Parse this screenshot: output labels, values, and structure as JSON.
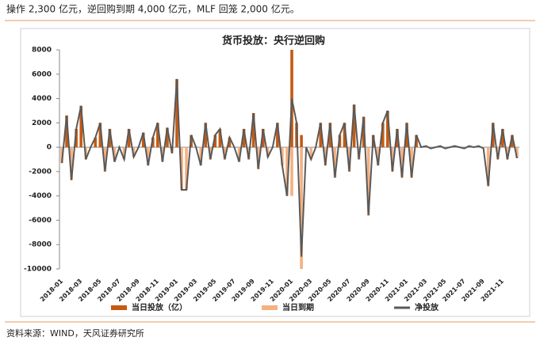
{
  "header": "操作 2,300 亿元，逆回购到期 4,000 亿元，MLF 回笼 2,000 亿元。",
  "source": "资料来源：WIND，天风证券研究所",
  "chart_data": {
    "type": "bar",
    "title": "货币投放：央行逆回购",
    "categories": [
      "2018-01",
      null,
      null,
      null,
      "2018-03",
      null,
      null,
      null,
      "2018-05",
      null,
      null,
      null,
      "2018-07",
      null,
      null,
      null,
      "2018-09",
      null,
      null,
      null,
      "2018-11",
      null,
      null,
      null,
      "2019-01",
      null,
      null,
      null,
      "2019-03",
      null,
      null,
      null,
      "2019-05",
      null,
      null,
      null,
      "2019-07",
      null,
      null,
      null,
      "2019-09",
      null,
      null,
      null,
      "2019-11",
      null,
      null,
      null,
      "2020-01",
      null,
      null,
      null,
      "2020-03",
      null,
      null,
      null,
      "2020-05",
      null,
      null,
      null,
      "2020-07",
      null,
      null,
      null,
      "2020-09",
      null,
      null,
      null,
      "2020-11",
      null,
      null,
      null,
      "2021-01",
      null,
      null,
      null,
      "2021-03",
      null,
      null,
      null,
      "2021-05",
      null,
      null,
      null,
      "2021-07",
      null,
      null,
      null,
      "2021-09",
      null,
      null,
      null,
      "2021-11",
      null,
      null,
      null
    ],
    "series": [
      {
        "name": "当日投放（亿）",
        "type": "bar",
        "color": "#c55a11",
        "values": [
          0,
          2600,
          0,
          1500,
          3400,
          0,
          0,
          800,
          2000,
          0,
          1500,
          0,
          0,
          0,
          1500,
          0,
          0,
          1200,
          0,
          800,
          2000,
          0,
          1600,
          0,
          5600,
          0,
          0,
          1000,
          0,
          0,
          2000,
          0,
          1000,
          1500,
          0,
          800,
          0,
          0,
          1500,
          0,
          2800,
          0,
          1500,
          0,
          0,
          2000,
          0,
          0,
          8000,
          2000,
          1000,
          0,
          0,
          0,
          2000,
          0,
          2000,
          0,
          1000,
          2000,
          0,
          3500,
          0,
          2500,
          0,
          1000,
          0,
          2000,
          3000,
          0,
          1500,
          0,
          2000,
          0,
          1000,
          0,
          100,
          0,
          0,
          100,
          0,
          0,
          100,
          0,
          0,
          100,
          0,
          100,
          0,
          0,
          2000,
          0,
          1500,
          0,
          1000,
          0
        ]
      },
      {
        "name": "当日到期",
        "type": "bar",
        "color": "#f4b183",
        "values": [
          -1300,
          0,
          -2700,
          0,
          0,
          -1000,
          0,
          0,
          0,
          -2000,
          0,
          -1200,
          0,
          -1000,
          0,
          -800,
          0,
          0,
          -1500,
          0,
          0,
          -1200,
          0,
          -500,
          0,
          -3500,
          -3500,
          0,
          0,
          -1500,
          0,
          -1000,
          0,
          0,
          -1000,
          0,
          0,
          -1200,
          0,
          -1000,
          0,
          -1800,
          0,
          -800,
          0,
          0,
          -1500,
          -4000,
          -4000,
          0,
          -10000,
          0,
          -1000,
          0,
          0,
          -1500,
          0,
          -2500,
          0,
          0,
          -2000,
          0,
          -1000,
          0,
          -5600,
          0,
          -1500,
          0,
          0,
          -2000,
          0,
          -2500,
          0,
          -2500,
          0,
          0,
          0,
          -100,
          0,
          0,
          -100,
          0,
          0,
          0,
          -100,
          0,
          0,
          0,
          -100,
          -3200,
          0,
          -1000,
          0,
          -1000,
          0,
          -900
        ]
      },
      {
        "name": "净投放",
        "type": "line",
        "color": "#595959",
        "values": [
          -1300,
          2600,
          -2700,
          1500,
          3400,
          -1000,
          0,
          800,
          2000,
          -2000,
          1500,
          -1200,
          0,
          -1000,
          1500,
          -800,
          0,
          1200,
          -1500,
          800,
          2000,
          -1200,
          1600,
          -500,
          5600,
          -3500,
          -3500,
          1000,
          0,
          -1500,
          2000,
          -1000,
          1000,
          1500,
          -1000,
          800,
          0,
          -1200,
          1500,
          -1000,
          2800,
          -1800,
          1500,
          -800,
          0,
          2000,
          -1500,
          -4000,
          4000,
          2000,
          -9000,
          0,
          -1000,
          0,
          2000,
          -1500,
          2000,
          -2500,
          1000,
          2000,
          -2000,
          3500,
          -1000,
          2500,
          -5600,
          1000,
          -1500,
          2000,
          3000,
          -2000,
          1500,
          -2500,
          2000,
          -2500,
          1000,
          0,
          100,
          -100,
          0,
          100,
          -100,
          0,
          100,
          0,
          -100,
          100,
          0,
          100,
          -100,
          -3200,
          2000,
          -1000,
          1500,
          -1000,
          1000,
          -900
        ]
      }
    ],
    "ylim": [
      -10000,
      8000
    ],
    "yticks": [
      -10000,
      -8000,
      -6000,
      -4000,
      -2000,
      0,
      2000,
      4000,
      6000,
      8000
    ]
  }
}
